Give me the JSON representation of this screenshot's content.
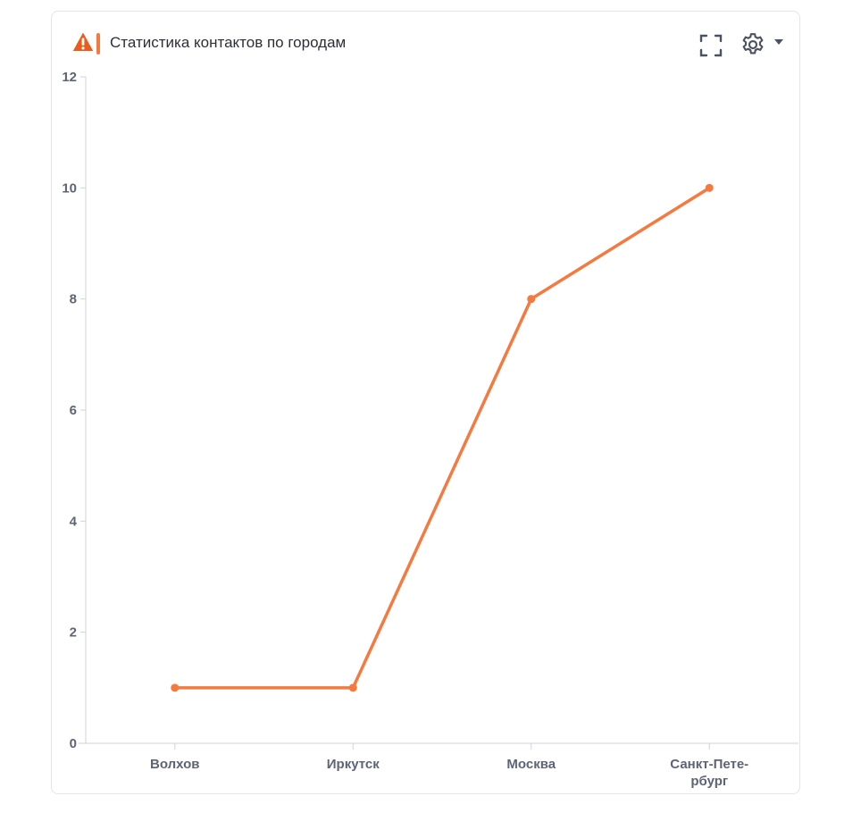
{
  "widget": {
    "title": "Статистика контактов по городам",
    "accent_color": "#f47a40",
    "warning_color": "#e85d1f",
    "icons": {
      "warning": "warning-triangle-icon",
      "fullscreen": "fullscreen-icon",
      "settings": "gear-icon",
      "dropdown": "caret-down-icon"
    }
  },
  "chart_data": {
    "type": "line",
    "title": "Статистика контактов по городам",
    "xlabel": "",
    "ylabel": "",
    "categories": [
      "Волхов",
      "Иркутск",
      "Москва",
      "Санкт-Петербург"
    ],
    "category_labels": [
      [
        "Волхов"
      ],
      [
        "Иркутск"
      ],
      [
        "Москва"
      ],
      [
        "Санкт-Пете-",
        "рбург"
      ]
    ],
    "series": [
      {
        "values": [
          1,
          1,
          8,
          10
        ],
        "color": "#f47a40"
      }
    ],
    "ylim": [
      0,
      12
    ],
    "yticks": [
      0,
      2,
      4,
      6,
      8,
      10,
      12
    ],
    "grid": false,
    "legend": "none"
  }
}
